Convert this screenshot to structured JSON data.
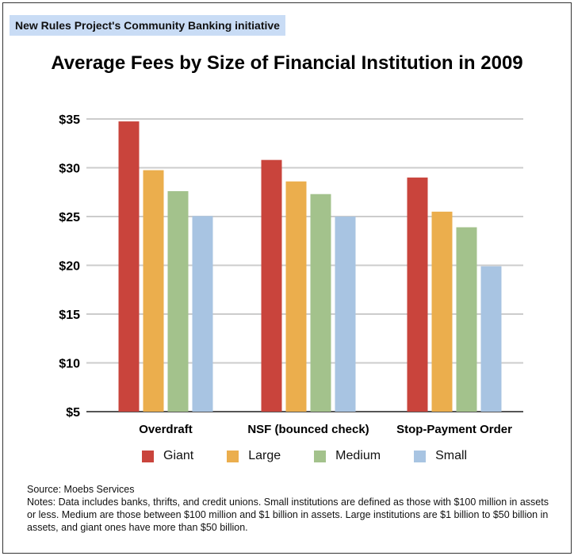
{
  "badge": "New Rules Project's Community Banking initiative",
  "chart_data": {
    "type": "bar",
    "title": "Average Fees by Size of Financial Institution in 2009",
    "categories": [
      "Overdraft",
      "NSF (bounced check)",
      "Stop-Payment Order"
    ],
    "series": [
      {
        "name": "Giant",
        "color": "#c9443c",
        "values": [
          34.75,
          30.8,
          29.0
        ]
      },
      {
        "name": "Large",
        "color": "#ebae4d",
        "values": [
          29.75,
          28.6,
          25.5
        ]
      },
      {
        "name": "Medium",
        "color": "#a3c28c",
        "values": [
          27.6,
          27.3,
          23.9
        ]
      },
      {
        "name": "Small",
        "color": "#a8c4e2",
        "values": [
          25.05,
          25.0,
          19.9
        ]
      }
    ],
    "ylim": [
      5,
      35
    ],
    "yticks": [
      "$5",
      "$10",
      "$15",
      "$20",
      "$25",
      "$30",
      "$35"
    ],
    "grid": true,
    "legend": "bottom"
  },
  "source": "Source: Moebs Services",
  "notes": "Notes: Data includes banks, thrifts, and credit unions.  Small institutions are defined as those with $100 million in assets or less.  Medium are those between $100 million and $1 billion in assets.  Large institutions are $1 billion to $50 billion in assets, and giant ones have more than $50 billion."
}
